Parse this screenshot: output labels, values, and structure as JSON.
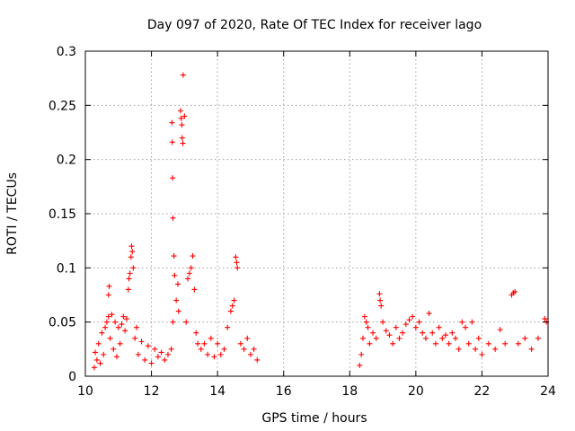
{
  "chart_data": {
    "type": "scatter",
    "title": "Day 097 of 2020, Rate Of TEC Index for receiver lago",
    "xlabel": "GPS time / hours",
    "ylabel": "ROTI / TECUs",
    "xlim": [
      10,
      24
    ],
    "ylim": [
      0,
      0.3
    ],
    "xticks": [
      "10",
      "12",
      "14",
      "16",
      "18",
      "20",
      "22",
      "24"
    ],
    "yticks": [
      "0",
      "0.05",
      "0.1",
      "0.15",
      "0.2",
      "0.25",
      "0.3"
    ],
    "grid": true,
    "marker": "+",
    "series_color": "#ff0000",
    "series": [
      {
        "name": "ROTI",
        "points": [
          [
            10.27,
            0.008
          ],
          [
            10.3,
            0.022
          ],
          [
            10.35,
            0.015
          ],
          [
            10.4,
            0.03
          ],
          [
            10.45,
            0.012
          ],
          [
            10.5,
            0.04
          ],
          [
            10.55,
            0.02
          ],
          [
            10.6,
            0.045
          ],
          [
            10.65,
            0.05
          ],
          [
            10.7,
            0.055
          ],
          [
            10.72,
            0.083
          ],
          [
            10.7,
            0.075
          ],
          [
            10.75,
            0.035
          ],
          [
            10.8,
            0.057
          ],
          [
            10.85,
            0.025
          ],
          [
            10.9,
            0.05
          ],
          [
            10.95,
            0.018
          ],
          [
            11.0,
            0.045
          ],
          [
            11.05,
            0.03
          ],
          [
            11.1,
            0.048
          ],
          [
            11.15,
            0.055
          ],
          [
            11.2,
            0.042
          ],
          [
            11.25,
            0.053
          ],
          [
            11.3,
            0.08
          ],
          [
            11.32,
            0.09
          ],
          [
            11.35,
            0.095
          ],
          [
            11.38,
            0.11
          ],
          [
            11.4,
            0.12
          ],
          [
            11.42,
            0.115
          ],
          [
            11.45,
            0.1
          ],
          [
            11.5,
            0.035
          ],
          [
            11.55,
            0.045
          ],
          [
            11.6,
            0.02
          ],
          [
            11.7,
            0.032
          ],
          [
            11.8,
            0.015
          ],
          [
            11.9,
            0.028
          ],
          [
            12.0,
            0.012
          ],
          [
            12.1,
            0.025
          ],
          [
            12.2,
            0.018
          ],
          [
            12.3,
            0.022
          ],
          [
            12.4,
            0.015
          ],
          [
            12.5,
            0.02
          ],
          [
            12.6,
            0.025
          ],
          [
            12.65,
            0.05
          ],
          [
            12.62,
            0.234
          ],
          [
            12.63,
            0.216
          ],
          [
            12.64,
            0.183
          ],
          [
            12.65,
            0.146
          ],
          [
            12.68,
            0.111
          ],
          [
            12.7,
            0.093
          ],
          [
            12.75,
            0.07
          ],
          [
            12.8,
            0.085
          ],
          [
            12.82,
            0.06
          ],
          [
            12.88,
            0.245
          ],
          [
            12.9,
            0.238
          ],
          [
            12.92,
            0.232
          ],
          [
            12.93,
            0.22
          ],
          [
            12.95,
            0.215
          ],
          [
            12.96,
            0.278
          ],
          [
            13.0,
            0.24
          ],
          [
            13.05,
            0.05
          ],
          [
            13.1,
            0.09
          ],
          [
            13.15,
            0.095
          ],
          [
            13.2,
            0.1
          ],
          [
            13.25,
            0.111
          ],
          [
            13.3,
            0.08
          ],
          [
            13.35,
            0.04
          ],
          [
            13.4,
            0.03
          ],
          [
            13.5,
            0.025
          ],
          [
            13.6,
            0.03
          ],
          [
            13.7,
            0.02
          ],
          [
            13.8,
            0.035
          ],
          [
            13.9,
            0.018
          ],
          [
            14.0,
            0.03
          ],
          [
            14.1,
            0.02
          ],
          [
            14.2,
            0.025
          ],
          [
            14.3,
            0.045
          ],
          [
            14.4,
            0.06
          ],
          [
            14.45,
            0.065
          ],
          [
            14.5,
            0.07
          ],
          [
            14.55,
            0.11
          ],
          [
            14.58,
            0.105
          ],
          [
            14.6,
            0.1
          ],
          [
            14.7,
            0.03
          ],
          [
            14.8,
            0.025
          ],
          [
            14.9,
            0.035
          ],
          [
            15.0,
            0.02
          ],
          [
            15.1,
            0.025
          ],
          [
            15.2,
            0.015
          ],
          [
            18.3,
            0.01
          ],
          [
            18.35,
            0.02
          ],
          [
            18.4,
            0.035
          ],
          [
            18.45,
            0.055
          ],
          [
            18.5,
            0.05
          ],
          [
            18.55,
            0.045
          ],
          [
            18.6,
            0.03
          ],
          [
            18.7,
            0.04
          ],
          [
            18.8,
            0.035
          ],
          [
            18.9,
            0.076
          ],
          [
            18.92,
            0.07
          ],
          [
            18.95,
            0.065
          ],
          [
            19.0,
            0.05
          ],
          [
            19.1,
            0.042
          ],
          [
            19.2,
            0.038
          ],
          [
            19.3,
            0.03
          ],
          [
            19.4,
            0.045
          ],
          [
            19.5,
            0.035
          ],
          [
            19.6,
            0.04
          ],
          [
            19.7,
            0.048
          ],
          [
            19.8,
            0.052
          ],
          [
            19.9,
            0.055
          ],
          [
            20.0,
            0.045
          ],
          [
            20.1,
            0.05
          ],
          [
            20.2,
            0.04
          ],
          [
            20.3,
            0.035
          ],
          [
            20.4,
            0.058
          ],
          [
            20.5,
            0.04
          ],
          [
            20.6,
            0.03
          ],
          [
            20.7,
            0.045
          ],
          [
            20.8,
            0.035
          ],
          [
            20.9,
            0.038
          ],
          [
            21.0,
            0.03
          ],
          [
            21.1,
            0.04
          ],
          [
            21.2,
            0.035
          ],
          [
            21.3,
            0.025
          ],
          [
            21.4,
            0.05
          ],
          [
            21.5,
            0.045
          ],
          [
            21.6,
            0.03
          ],
          [
            21.7,
            0.05
          ],
          [
            21.8,
            0.025
          ],
          [
            21.9,
            0.035
          ],
          [
            22.0,
            0.02
          ],
          [
            22.2,
            0.03
          ],
          [
            22.4,
            0.025
          ],
          [
            22.55,
            0.043
          ],
          [
            22.7,
            0.03
          ],
          [
            22.9,
            0.075
          ],
          [
            22.95,
            0.077
          ],
          [
            23.0,
            0.078
          ],
          [
            23.1,
            0.03
          ],
          [
            23.3,
            0.035
          ],
          [
            23.5,
            0.025
          ],
          [
            23.7,
            0.035
          ],
          [
            23.9,
            0.053
          ],
          [
            23.95,
            0.05
          ]
        ]
      }
    ]
  }
}
